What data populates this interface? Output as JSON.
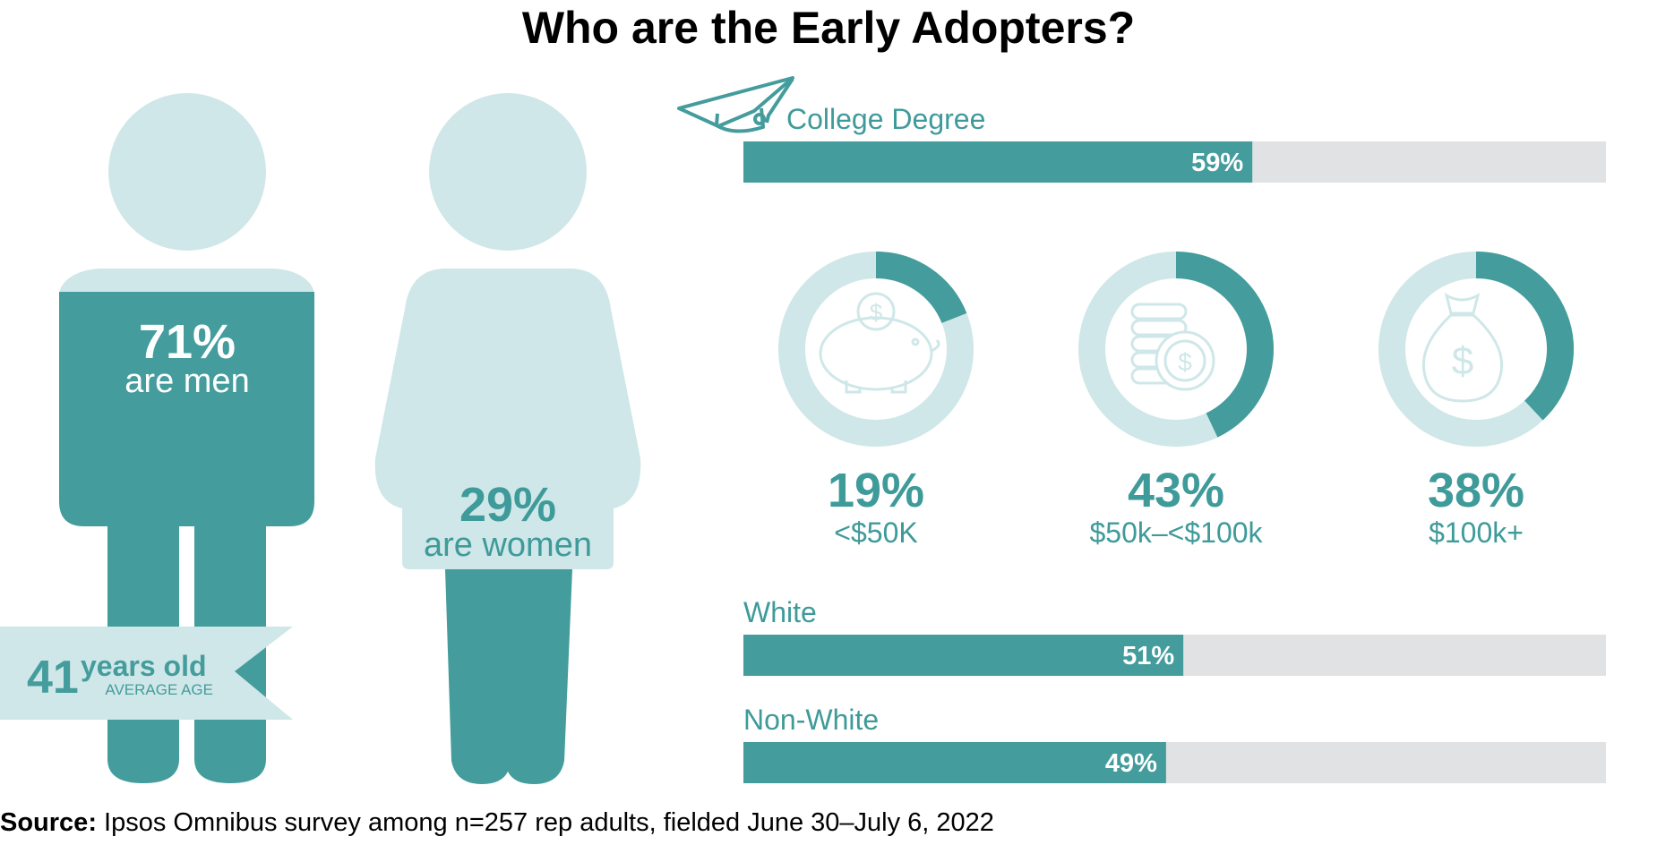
{
  "title": "Who are the Early Adopters?",
  "source": {
    "label": "Source:",
    "text": "Ipsos Omnibus survey among n=257 rep adults, fielded June 30–July 6, 2022"
  },
  "colors": {
    "teal": "#449c9c",
    "light": "#cfe7e8",
    "track": "#e1e2e3",
    "text_teal": "#3f9a9a"
  },
  "gender": {
    "men": {
      "pct": "71%",
      "label": "are men"
    },
    "women": {
      "pct": "29%",
      "label": "are women"
    },
    "age": {
      "value": "41",
      "unit": "years old",
      "caption": "AVERAGE AGE"
    }
  },
  "chart_data": {
    "type": "mixed",
    "title": "Who are the Early Adopters?",
    "bars": [
      {
        "label": "College Degree",
        "value": 59,
        "display": "59%",
        "icon": "graduation-cap-icon"
      },
      {
        "label": "White",
        "value": 51,
        "display": "51%"
      },
      {
        "label": "Non-White",
        "value": 49,
        "display": "49%"
      }
    ],
    "income": [
      {
        "label": "<$50K",
        "value": 19,
        "display": "19%",
        "icon": "piggy-bank-icon"
      },
      {
        "label": "$50k–<$100k",
        "value": 43,
        "display": "43%",
        "icon": "coin-stack-icon"
      },
      {
        "label": "$100k+",
        "value": 38,
        "display": "38%",
        "icon": "money-bag-icon"
      }
    ],
    "gender": [
      {
        "label": "are men",
        "value": 71,
        "display": "71%"
      },
      {
        "label": "are women",
        "value": 29,
        "display": "29%"
      }
    ],
    "average_age": 41,
    "xlim": [
      0,
      100
    ]
  }
}
